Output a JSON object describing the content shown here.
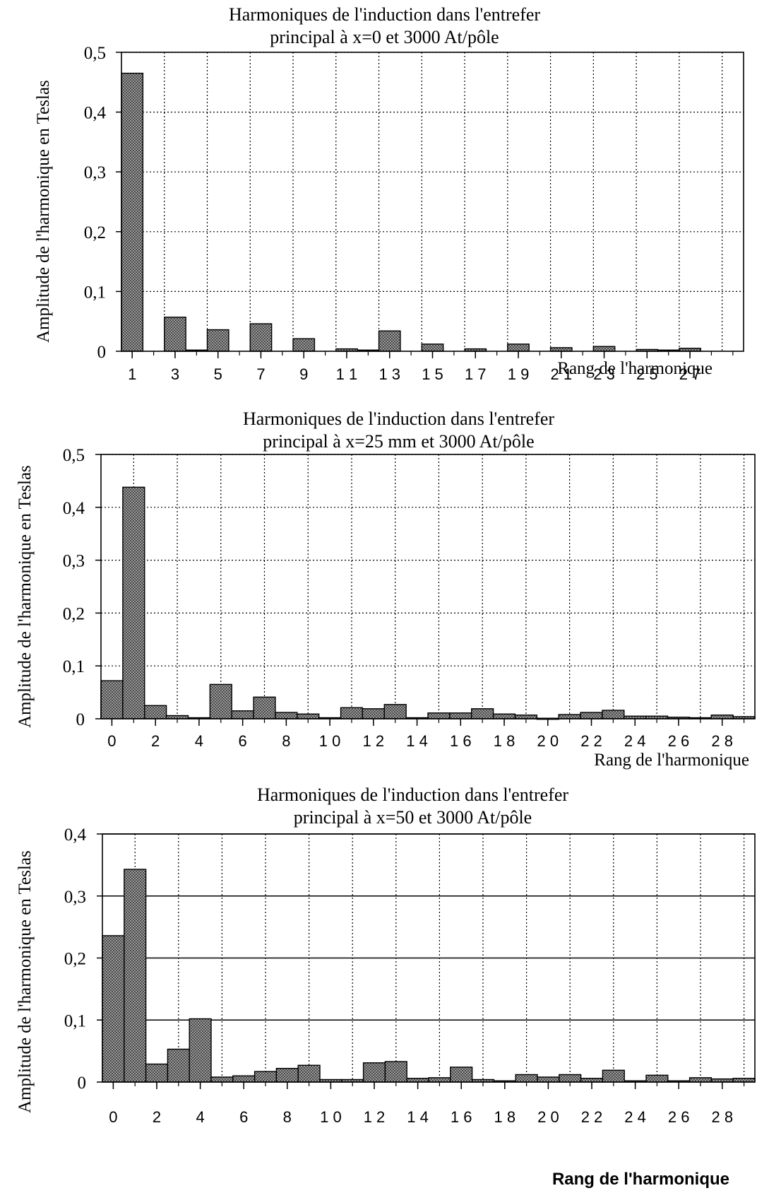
{
  "chart_data": [
    {
      "type": "bar",
      "title": "Harmoniques de l'induction dans l'entrefer",
      "subtitle": "principal à x=0 et 3000 At/pôle",
      "xlabel": "Rang de l'harmonique",
      "ylabel": "Amplitude de l'harmonique en Teslas",
      "ylim": [
        0,
        0.5
      ],
      "y_ticks": [
        "0",
        "0,1",
        "0,2",
        "0,3",
        "0,4",
        "0,5"
      ],
      "y_tick_values": [
        0,
        0.1,
        0.2,
        0.3,
        0.4,
        0.5
      ],
      "x_tick_labels": [
        "1",
        "3",
        "5",
        "7",
        "9",
        "1 1",
        "1 3",
        "1 5",
        "1 7",
        "1 9",
        "2 1",
        "2 3",
        "2 5",
        "2 7"
      ],
      "x_tick_positions": [
        1,
        3,
        5,
        7,
        9,
        11,
        13,
        15,
        17,
        19,
        21,
        23,
        25,
        27
      ],
      "xlim": [
        0,
        29
      ],
      "grid": "dotted",
      "x": [
        1,
        2,
        3,
        4,
        5,
        6,
        7,
        8,
        9,
        10,
        11,
        12,
        13,
        14,
        15,
        16,
        17,
        18,
        19,
        20,
        21,
        22,
        23,
        24,
        25,
        26,
        27,
        28
      ],
      "values": [
        0.465,
        0.0,
        0.057,
        0.002,
        0.036,
        0.0,
        0.046,
        0.0,
        0.021,
        0.0,
        0.004,
        0.002,
        0.034,
        0.0,
        0.012,
        0.0,
        0.004,
        0.0,
        0.012,
        0.0,
        0.006,
        0.0,
        0.008,
        0.0,
        0.003,
        0.002,
        0.005,
        0.0
      ]
    },
    {
      "type": "bar",
      "title": "Harmoniques de l'induction dans l'entrefer",
      "subtitle": "principal à x=25 mm et 3000 At/pôle",
      "xlabel": "Rang de l'harmonique",
      "ylabel": "Amplitude de l'harmonique en Teslas",
      "ylim": [
        0,
        0.5
      ],
      "y_ticks": [
        "0",
        "0,1",
        "0,2",
        "0,3",
        "0,4",
        "0,5"
      ],
      "y_tick_values": [
        0,
        0.1,
        0.2,
        0.3,
        0.4,
        0.5
      ],
      "x_tick_labels": [
        "0",
        "2",
        "4",
        "6",
        "8",
        "1 0",
        "1 2",
        "1 4",
        "1 6",
        "1 8",
        "2 0",
        "2 2",
        "2 4",
        "2 6",
        "2 8"
      ],
      "x_tick_positions": [
        0,
        2,
        4,
        6,
        8,
        10,
        12,
        14,
        16,
        18,
        20,
        22,
        24,
        26,
        28
      ],
      "xlim": [
        -0.5,
        29.5
      ],
      "grid": "dotted",
      "x": [
        0,
        1,
        2,
        3,
        4,
        5,
        6,
        7,
        8,
        9,
        10,
        11,
        12,
        13,
        14,
        15,
        16,
        17,
        18,
        19,
        20,
        21,
        22,
        23,
        24,
        25,
        26,
        27,
        28,
        29
      ],
      "values": [
        0.072,
        0.438,
        0.025,
        0.006,
        0.002,
        0.065,
        0.015,
        0.041,
        0.012,
        0.009,
        0.002,
        0.021,
        0.019,
        0.027,
        0.002,
        0.011,
        0.011,
        0.019,
        0.009,
        0.007,
        0.001,
        0.008,
        0.012,
        0.016,
        0.005,
        0.005,
        0.003,
        0.002,
        0.007,
        0.004
      ]
    },
    {
      "type": "bar",
      "title": "Harmoniques de l'induction dans l'entrefer",
      "subtitle": "principal à x=50 et 3000 At/pôle",
      "xlabel": "Rang de l'harmonique",
      "ylabel": "Amplitude de l'harmonique en Teslas",
      "ylim": [
        0,
        0.4
      ],
      "y_ticks": [
        "0",
        "0,1",
        "0,2",
        "0,3",
        "0,4"
      ],
      "y_tick_values": [
        0,
        0.1,
        0.2,
        0.3,
        0.4
      ],
      "x_tick_labels": [
        "0",
        "2",
        "4",
        "6",
        "8",
        "1 0",
        "1 2",
        "1 4",
        "1 6",
        "1 8",
        "2 0",
        "2 2",
        "2 4",
        "2 6",
        "2 8"
      ],
      "x_tick_positions": [
        0,
        2,
        4,
        6,
        8,
        10,
        12,
        14,
        16,
        18,
        20,
        22,
        24,
        26,
        28
      ],
      "xlim": [
        -0.5,
        29.5
      ],
      "grid": "solid horizontal, dotted vertical",
      "x": [
        0,
        1,
        2,
        3,
        4,
        5,
        6,
        7,
        8,
        9,
        10,
        11,
        12,
        13,
        14,
        15,
        16,
        17,
        18,
        19,
        20,
        21,
        22,
        23,
        24,
        25,
        26,
        27,
        28,
        29
      ],
      "values": [
        0.236,
        0.343,
        0.029,
        0.053,
        0.102,
        0.008,
        0.01,
        0.017,
        0.022,
        0.027,
        0.004,
        0.004,
        0.031,
        0.033,
        0.006,
        0.007,
        0.024,
        0.004,
        0.002,
        0.012,
        0.008,
        0.012,
        0.006,
        0.019,
        0.002,
        0.011,
        0.002,
        0.007,
        0.005,
        0.006
      ]
    }
  ]
}
